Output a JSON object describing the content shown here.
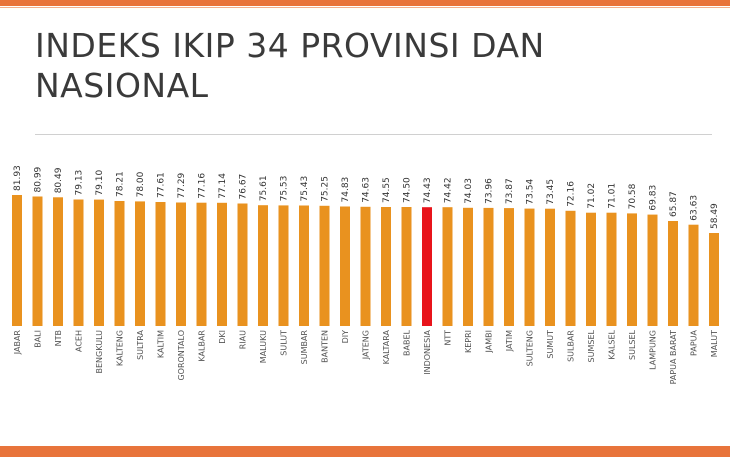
{
  "title_line1": "INDEKS IKIP 34 PROVINSI DAN",
  "title_line2": "NASIONAL",
  "colors": {
    "bar": "#e9921f",
    "highlight": "#e8141b",
    "accent": "#e8743b",
    "label": "#555555"
  },
  "chart_data": {
    "type": "bar",
    "title": "INDEKS IKIP 34 PROVINSI DAN NASIONAL",
    "xlabel": "",
    "ylabel": "",
    "highlight": "INDONESIA",
    "categories": [
      "JABAR",
      "BALI",
      "NTB",
      "ACEH",
      "BENGKULU",
      "KALTENG",
      "SULTRA",
      "KALTIM",
      "GORONTALO",
      "KALBAR",
      "DKI",
      "RIAU",
      "MALUKU",
      "SULUT",
      "SUMBAR",
      "BANTEN",
      "DIY",
      "JATENG",
      "KALTARA",
      "BABEL",
      "INDONESIA",
      "NTT",
      "KEPRI",
      "JAMBI",
      "JATIM",
      "SULTENG",
      "SUMUT",
      "SULBAR",
      "SUMSEL",
      "KALSEL",
      "SULSEL",
      "LAMPUNG",
      "PAPUA BARAT",
      "PAPUA",
      "MALUT"
    ],
    "values": [
      81.93,
      80.99,
      80.49,
      79.13,
      79.1,
      78.21,
      78.0,
      77.61,
      77.29,
      77.16,
      77.14,
      76.67,
      75.61,
      75.53,
      75.43,
      75.25,
      74.83,
      74.63,
      74.55,
      74.5,
      74.43,
      74.42,
      74.03,
      73.96,
      73.87,
      73.54,
      73.45,
      72.16,
      71.02,
      71.01,
      70.58,
      69.83,
      65.87,
      63.63,
      58.49
    ],
    "value_labels": [
      "81.93",
      "80.99",
      "80.49",
      "79.13",
      "79.10",
      "78.21",
      "78.00",
      "77.61",
      "77.29",
      "77.16",
      "77.14",
      "76.67",
      "75.61",
      "75.53",
      "75.43",
      "75.25",
      "74.83",
      "74.63",
      "74.55",
      "74.50",
      "74.43",
      "74.42",
      "74.03",
      "73.96",
      "73.87",
      "73.54",
      "73.45",
      "72.16",
      "71.02",
      "71.01",
      "70.58",
      "69.83",
      "65.87",
      "63.63",
      "58.49"
    ]
  }
}
